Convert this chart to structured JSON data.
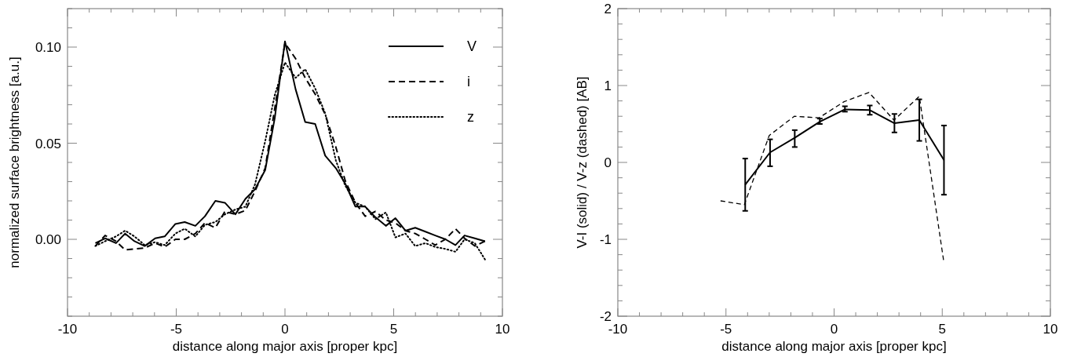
{
  "chart_data": [
    {
      "type": "line",
      "xlabel": "distance along major axis [proper kpc]",
      "ylabel": "normalized surface brightness [a.u.]",
      "xlim": [
        -10,
        10
      ],
      "ylim": [
        -0.04,
        0.12
      ],
      "xticks": [
        {
          "value": -10,
          "label": "-10"
        },
        {
          "value": -9,
          "label": null
        },
        {
          "value": -8,
          "label": null
        },
        {
          "value": -7,
          "label": null
        },
        {
          "value": -6,
          "label": null
        },
        {
          "value": -5,
          "label": "-5"
        },
        {
          "value": -4,
          "label": null
        },
        {
          "value": -3,
          "label": null
        },
        {
          "value": -2,
          "label": null
        },
        {
          "value": -1,
          "label": null
        },
        {
          "value": 0,
          "label": "0"
        },
        {
          "value": 1,
          "label": null
        },
        {
          "value": 2,
          "label": null
        },
        {
          "value": 3,
          "label": null
        },
        {
          "value": 4,
          "label": null
        },
        {
          "value": 5,
          "label": "5"
        },
        {
          "value": 6,
          "label": null
        },
        {
          "value": 7,
          "label": null
        },
        {
          "value": 8,
          "label": null
        },
        {
          "value": 9,
          "label": null
        },
        {
          "value": 10,
          "label": "10"
        }
      ],
      "yticks": [
        {
          "value": -0.04,
          "label": null
        },
        {
          "value": -0.03,
          "label": null
        },
        {
          "value": -0.02,
          "label": null
        },
        {
          "value": -0.01,
          "label": null
        },
        {
          "value": 0,
          "label": "0.00"
        },
        {
          "value": 0.01,
          "label": null
        },
        {
          "value": 0.02,
          "label": null
        },
        {
          "value": 0.03,
          "label": null
        },
        {
          "value": 0.04,
          "label": null
        },
        {
          "value": 0.05,
          "label": "0.05"
        },
        {
          "value": 0.06,
          "label": null
        },
        {
          "value": 0.07,
          "label": null
        },
        {
          "value": 0.08,
          "label": null
        },
        {
          "value": 0.09,
          "label": null
        },
        {
          "value": 0.1,
          "label": "0.10"
        },
        {
          "value": 0.11,
          "label": null
        },
        {
          "value": 0.12,
          "label": null
        }
      ],
      "grid": false,
      "legend": "top right",
      "x": [
        -8.72,
        -8.27,
        -7.77,
        -7.35,
        -6.92,
        -6.45,
        -5.97,
        -5.53,
        -5.04,
        -4.61,
        -4.12,
        -3.68,
        -3.2,
        -2.76,
        -2.28,
        -1.82,
        -1.38,
        -0.91,
        -0.47,
        0,
        0.49,
        0.93,
        1.39,
        1.85,
        2.34,
        2.77,
        3.24,
        3.69,
        4.16,
        4.64,
        5.08,
        5.54,
        5.99,
        6.46,
        6.91,
        7.38,
        7.84,
        8.26,
        8.73,
        9.2
      ],
      "series": [
        {
          "name": "V",
          "color": "#000000",
          "line_style": "solid",
          "values": [
            -0.002,
            0.0005,
            -0.002,
            0.003,
            -0.001,
            -0.0035,
            0.0005,
            0.0015,
            0.008,
            0.009,
            0.007,
            0.012,
            0.02,
            0.019,
            0.013,
            0.021,
            0.026,
            0.036,
            0.063,
            0.103,
            0.078,
            0.061,
            0.06,
            0.0435,
            0.037,
            0.029,
            0.017,
            0.017,
            0.0115,
            0.007,
            0.011,
            0.0045,
            0.006,
            0.004,
            0.002,
            0,
            -0.003,
            0.002,
            0.0005,
            -0.001
          ]
        },
        {
          "name": "i",
          "color": "#000000",
          "line_style": "dashed",
          "values": [
            -0.0035,
            0.002,
            -0.001,
            -0.0055,
            -0.005,
            -0.0045,
            -0.002,
            -0.004,
            0,
            0,
            0.003,
            0.0085,
            0.006,
            0.0145,
            0.013,
            0.015,
            0.025,
            0.037,
            0.068,
            0.102,
            0.094,
            0.084,
            0.0755,
            0.065,
            0.048,
            0.0305,
            0.019,
            0.012,
            0.0145,
            0.01,
            0.0085,
            0.0045,
            0.003,
            0,
            -0.003,
            0,
            0.0055,
            0.0005,
            -0.0035,
            -0.001
          ]
        },
        {
          "name": "z",
          "color": "#000000",
          "line_style": "dotted",
          "values": [
            -0.0035,
            -0.001,
            0.0015,
            0.0045,
            0.0015,
            -0.003,
            -0.0015,
            -0.003,
            0.003,
            0.0055,
            0.0015,
            0.0075,
            0.009,
            0.013,
            0.0155,
            0.017,
            0.0285,
            0.051,
            0.075,
            0.092,
            0.084,
            0.0885,
            0.0785,
            0.0655,
            0.041,
            0.028,
            0.019,
            0.017,
            0.0105,
            0.014,
            0.001,
            0.003,
            -0.0035,
            -0.002,
            -0.004,
            -0.005,
            -0.0065,
            0,
            -0.002,
            -0.0105
          ]
        }
      ]
    },
    {
      "type": "line",
      "xlabel": "distance along major axis [proper kpc]",
      "ylabel": "V-I (solid) / V-z (dashed) [AB]",
      "xlim": [
        -10,
        10
      ],
      "ylim": [
        -2,
        2
      ],
      "xticks": [
        {
          "value": -10,
          "label": "-10"
        },
        {
          "value": -9,
          "label": null
        },
        {
          "value": -8,
          "label": null
        },
        {
          "value": -7,
          "label": null
        },
        {
          "value": -6,
          "label": null
        },
        {
          "value": -5,
          "label": "-5"
        },
        {
          "value": -4,
          "label": null
        },
        {
          "value": -3,
          "label": null
        },
        {
          "value": -2,
          "label": null
        },
        {
          "value": -1,
          "label": null
        },
        {
          "value": 0,
          "label": "0"
        },
        {
          "value": 1,
          "label": null
        },
        {
          "value": 2,
          "label": null
        },
        {
          "value": 3,
          "label": null
        },
        {
          "value": 4,
          "label": null
        },
        {
          "value": 5,
          "label": "5"
        },
        {
          "value": 6,
          "label": null
        },
        {
          "value": 7,
          "label": null
        },
        {
          "value": 8,
          "label": null
        },
        {
          "value": 9,
          "label": null
        },
        {
          "value": 10,
          "label": "10"
        }
      ],
      "yticks": [
        {
          "value": -2,
          "label": "-2"
        },
        {
          "value": -1.8,
          "label": null
        },
        {
          "value": -1.6,
          "label": null
        },
        {
          "value": -1.4,
          "label": null
        },
        {
          "value": -1.2,
          "label": null
        },
        {
          "value": -1,
          "label": "-1"
        },
        {
          "value": -0.8,
          "label": null
        },
        {
          "value": -0.6,
          "label": null
        },
        {
          "value": -0.4,
          "label": null
        },
        {
          "value": -0.2,
          "label": null
        },
        {
          "value": 0,
          "label": "0"
        },
        {
          "value": 0.2,
          "label": null
        },
        {
          "value": 0.4,
          "label": null
        },
        {
          "value": 0.6,
          "label": null
        },
        {
          "value": 0.8,
          "label": null
        },
        {
          "value": 1,
          "label": "1"
        },
        {
          "value": 1.2,
          "label": null
        },
        {
          "value": 1.4,
          "label": null
        },
        {
          "value": 1.6,
          "label": null
        },
        {
          "value": 1.8,
          "label": null
        },
        {
          "value": 2,
          "label": "2"
        }
      ],
      "grid": false,
      "series": [
        {
          "color": "#000000",
          "line_style": "solid",
          "x": [
            -4.11,
            -2.96,
            -1.82,
            -0.66,
            0.5,
            1.65,
            2.79,
            3.94,
            5.08
          ],
          "values": [
            -0.29,
            0.13,
            0.32,
            0.53,
            0.69,
            0.68,
            0.51,
            0.55,
            0.03
          ],
          "errors": [
            [
              -0.63,
              0.05
            ],
            [
              -0.05,
              0.3
            ],
            [
              0.2,
              0.42
            ],
            [
              0.5,
              0.57
            ],
            [
              0.66,
              0.73
            ],
            [
              0.62,
              0.74
            ],
            [
              0.39,
              0.63
            ],
            [
              0.28,
              0.82
            ],
            [
              -0.42,
              0.48
            ]
          ]
        },
        {
          "color": "#000000",
          "line_style": "dashed",
          "x": [
            -5.25,
            -4.15,
            -3.0,
            -1.84,
            -0.7,
            0.46,
            1.61,
            2.77,
            3.94,
            5.06
          ],
          "values": [
            -0.5,
            -0.55,
            0.35,
            0.6,
            0.58,
            0.79,
            0.91,
            0.55,
            0.86,
            -1.27
          ]
        }
      ]
    }
  ]
}
